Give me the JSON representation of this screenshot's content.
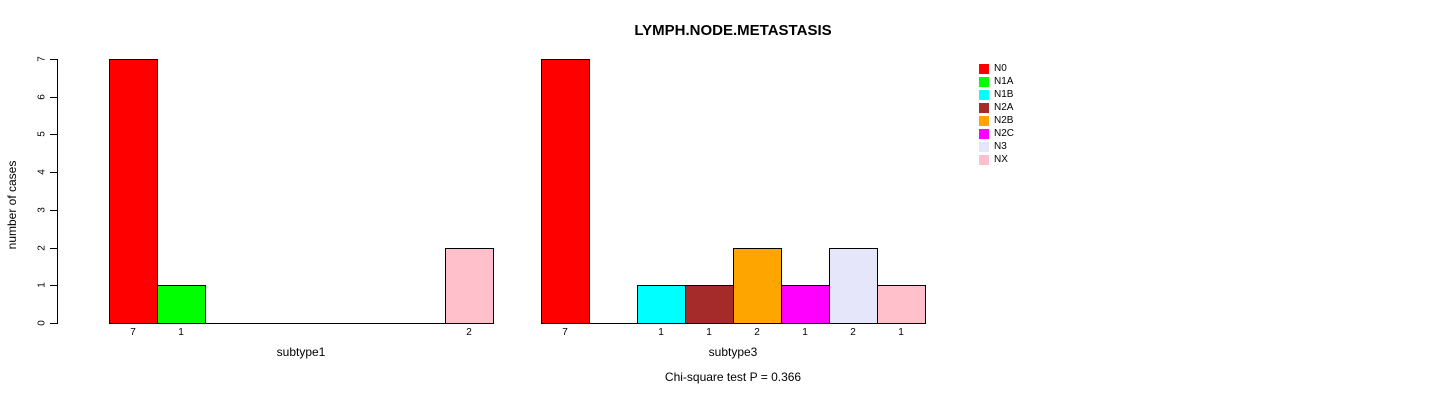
{
  "title": "LYMPH.NODE.METASTASIS",
  "ylabel": "number of cases",
  "footer": "Chi-square test P = 0.366",
  "legend": {
    "entries": [
      {
        "label": "N0",
        "color": "#FF0000"
      },
      {
        "label": "N1A",
        "color": "#00FF00"
      },
      {
        "label": "N1B",
        "color": "#00FFFF"
      },
      {
        "label": "N2A",
        "color": "#A52A2A"
      },
      {
        "label": "N2B",
        "color": "#FFA500"
      },
      {
        "label": "N2C",
        "color": "#FF00FF"
      },
      {
        "label": "N3",
        "color": "#E6E6FA"
      },
      {
        "label": "NX",
        "color": "#FFC0CB"
      }
    ]
  },
  "chart_data": {
    "type": "bar",
    "title": "LYMPH.NODE.METASTASIS",
    "ylabel": "number of cases",
    "ylim": [
      0,
      7
    ],
    "yticks": [
      0,
      1,
      2,
      3,
      4,
      5,
      6,
      7
    ],
    "grid": false,
    "legend_position": "right",
    "categories": [
      "N0",
      "N1A",
      "N1B",
      "N2A",
      "N2B",
      "N2C",
      "N3",
      "NX"
    ],
    "colors": [
      "#FF0000",
      "#00FF00",
      "#00FFFF",
      "#A52A2A",
      "#FFA500",
      "#FF00FF",
      "#E6E6FA",
      "#FFC0CB"
    ],
    "panels": [
      {
        "xlabel": "subtype1",
        "values": [
          7,
          1,
          0,
          0,
          0,
          0,
          0,
          2
        ],
        "bar_value_labels": [
          "7",
          "1",
          "",
          "",
          "",
          "",
          "",
          "2"
        ]
      },
      {
        "xlabel": "subtype3",
        "values": [
          7,
          0,
          1,
          1,
          2,
          1,
          2,
          1
        ],
        "bar_value_labels": [
          "7",
          "",
          "1",
          "1",
          "2",
          "1",
          "2",
          "1"
        ]
      }
    ],
    "annotation": "Chi-square test P = 0.366"
  }
}
